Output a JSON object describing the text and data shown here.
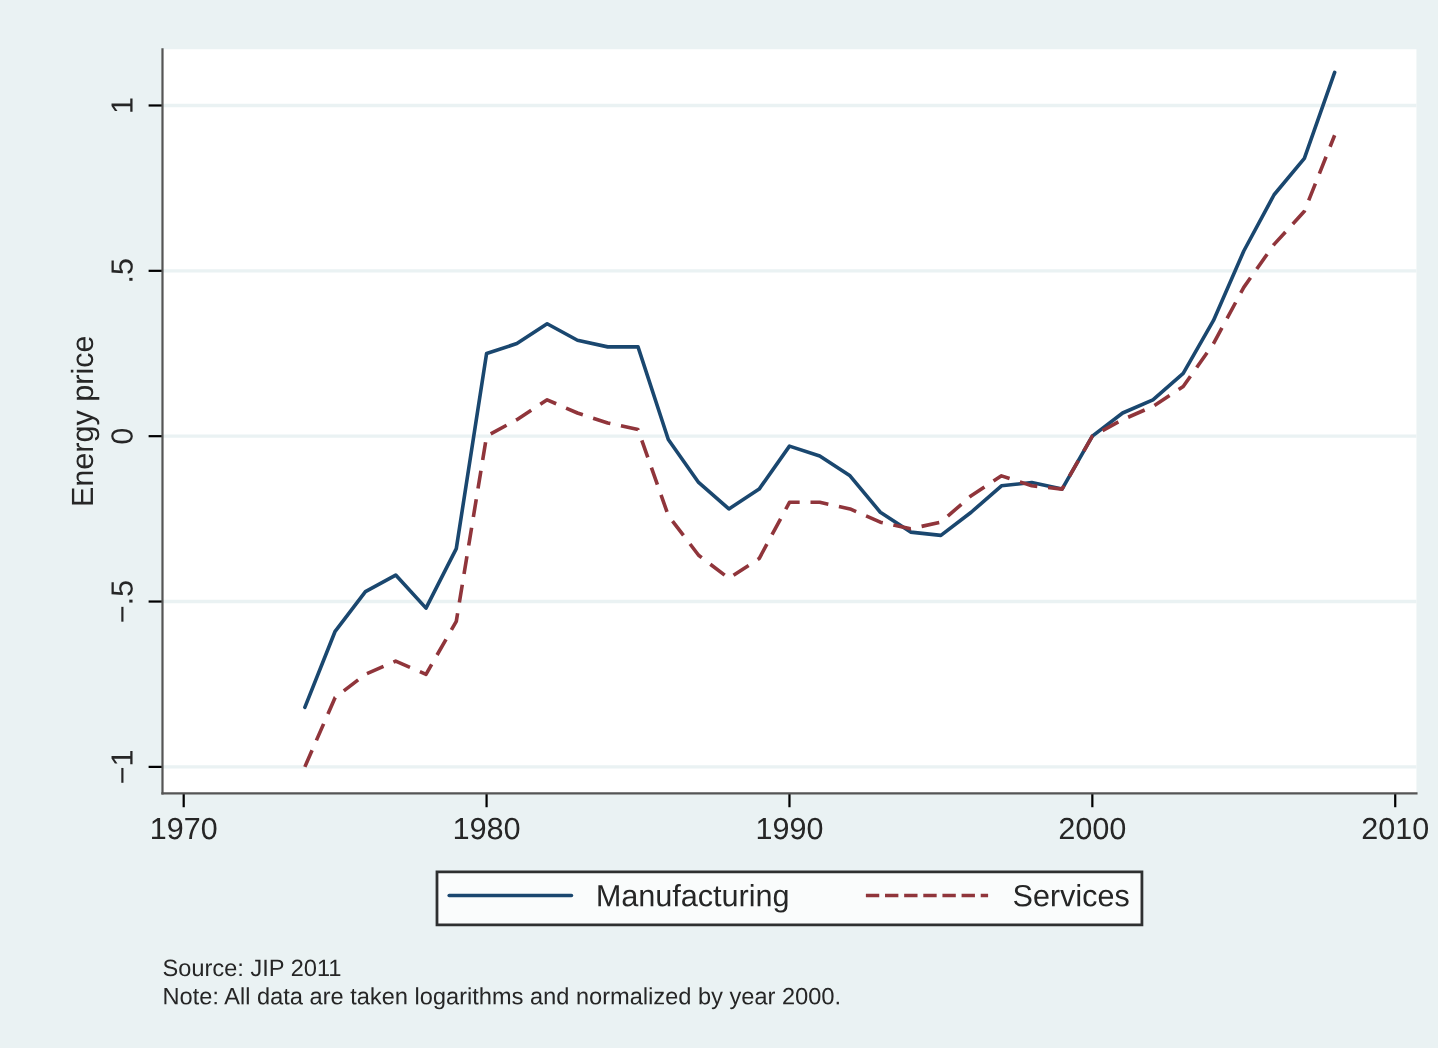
{
  "chart_data": {
    "type": "line",
    "ylabel": "Energy price",
    "x": [
      1974,
      1975,
      1976,
      1977,
      1978,
      1979,
      1980,
      1981,
      1982,
      1983,
      1984,
      1985,
      1986,
      1987,
      1988,
      1989,
      1990,
      1991,
      1992,
      1993,
      1994,
      1995,
      1996,
      1997,
      1998,
      1999,
      2000,
      2001,
      2002,
      2003,
      2004,
      2005,
      2006,
      2007,
      2008
    ],
    "series": [
      {
        "name": "Manufacturing",
        "color": "#1a476f",
        "line_style": "solid",
        "values": [
          -0.82,
          -0.59,
          -0.47,
          -0.42,
          -0.52,
          -0.34,
          0.25,
          0.28,
          0.34,
          0.29,
          0.27,
          0.27,
          -0.01,
          -0.14,
          -0.22,
          -0.16,
          -0.03,
          -0.06,
          -0.12,
          -0.23,
          -0.29,
          -0.3,
          -0.23,
          -0.15,
          -0.14,
          -0.16,
          0.0,
          0.07,
          0.11,
          0.19,
          0.35,
          0.56,
          0.73,
          0.84,
          1.1
        ]
      },
      {
        "name": "Services",
        "color": "#90353b",
        "line_style": "dashed",
        "values": [
          -1.0,
          -0.79,
          -0.72,
          -0.68,
          -0.72,
          -0.56,
          0.0,
          0.05,
          0.11,
          0.07,
          0.04,
          0.02,
          -0.24,
          -0.36,
          -0.43,
          -0.37,
          -0.2,
          -0.2,
          -0.22,
          -0.26,
          -0.28,
          -0.26,
          -0.18,
          -0.12,
          -0.15,
          -0.16,
          0.0,
          0.05,
          0.09,
          0.15,
          0.28,
          0.45,
          0.58,
          0.68,
          0.91
        ]
      }
    ],
    "xlim": [
      1969.3,
      2010.7
    ],
    "xticks": [
      1970,
      1980,
      1990,
      2000,
      2010
    ],
    "ylim": [
      -1.08,
      1.17
    ],
    "yticks": [
      {
        "value": -1,
        "label": "−1"
      },
      {
        "value": -0.5,
        "label": "−.5"
      },
      {
        "value": 0,
        "label": "0"
      },
      {
        "value": 0.5,
        "label": ".5"
      },
      {
        "value": 1,
        "label": "1"
      }
    ],
    "grid": "y",
    "legend": "bottom",
    "annotations": [
      "Source: JIP 2011",
      "Note: All data are taken logarithms and normalized by year 2000."
    ]
  }
}
